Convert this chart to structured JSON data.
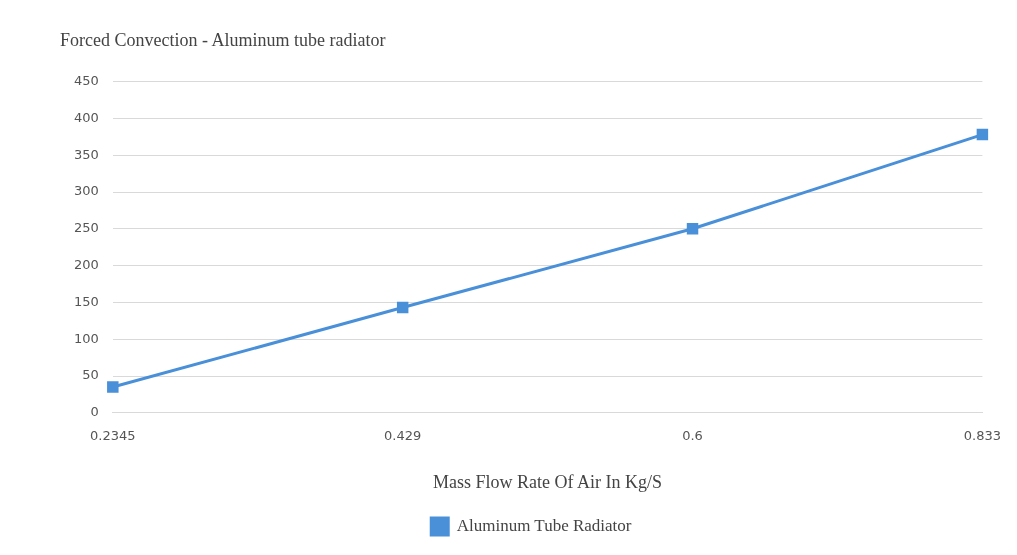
{
  "chart_data": {
    "type": "line",
    "title": "Forced Convection - Aluminum tube radiator",
    "xlabel": "Mass Flow Rate Of Air In Kg/S",
    "categories": [
      "0.2345",
      "0.429",
      "0.6",
      "0.833"
    ],
    "series": [
      {
        "name": "Aluminum Tube Radiator",
        "color": "#4a90d9",
        "values": [
          35,
          143,
          250,
          378
        ]
      }
    ],
    "ylim": [
      0,
      450
    ],
    "yticks": [
      0,
      50,
      100,
      150,
      200,
      250,
      300,
      350,
      400,
      450
    ],
    "grid": "y",
    "legend": "bottom",
    "marker": "square",
    "line_style": "solid"
  }
}
